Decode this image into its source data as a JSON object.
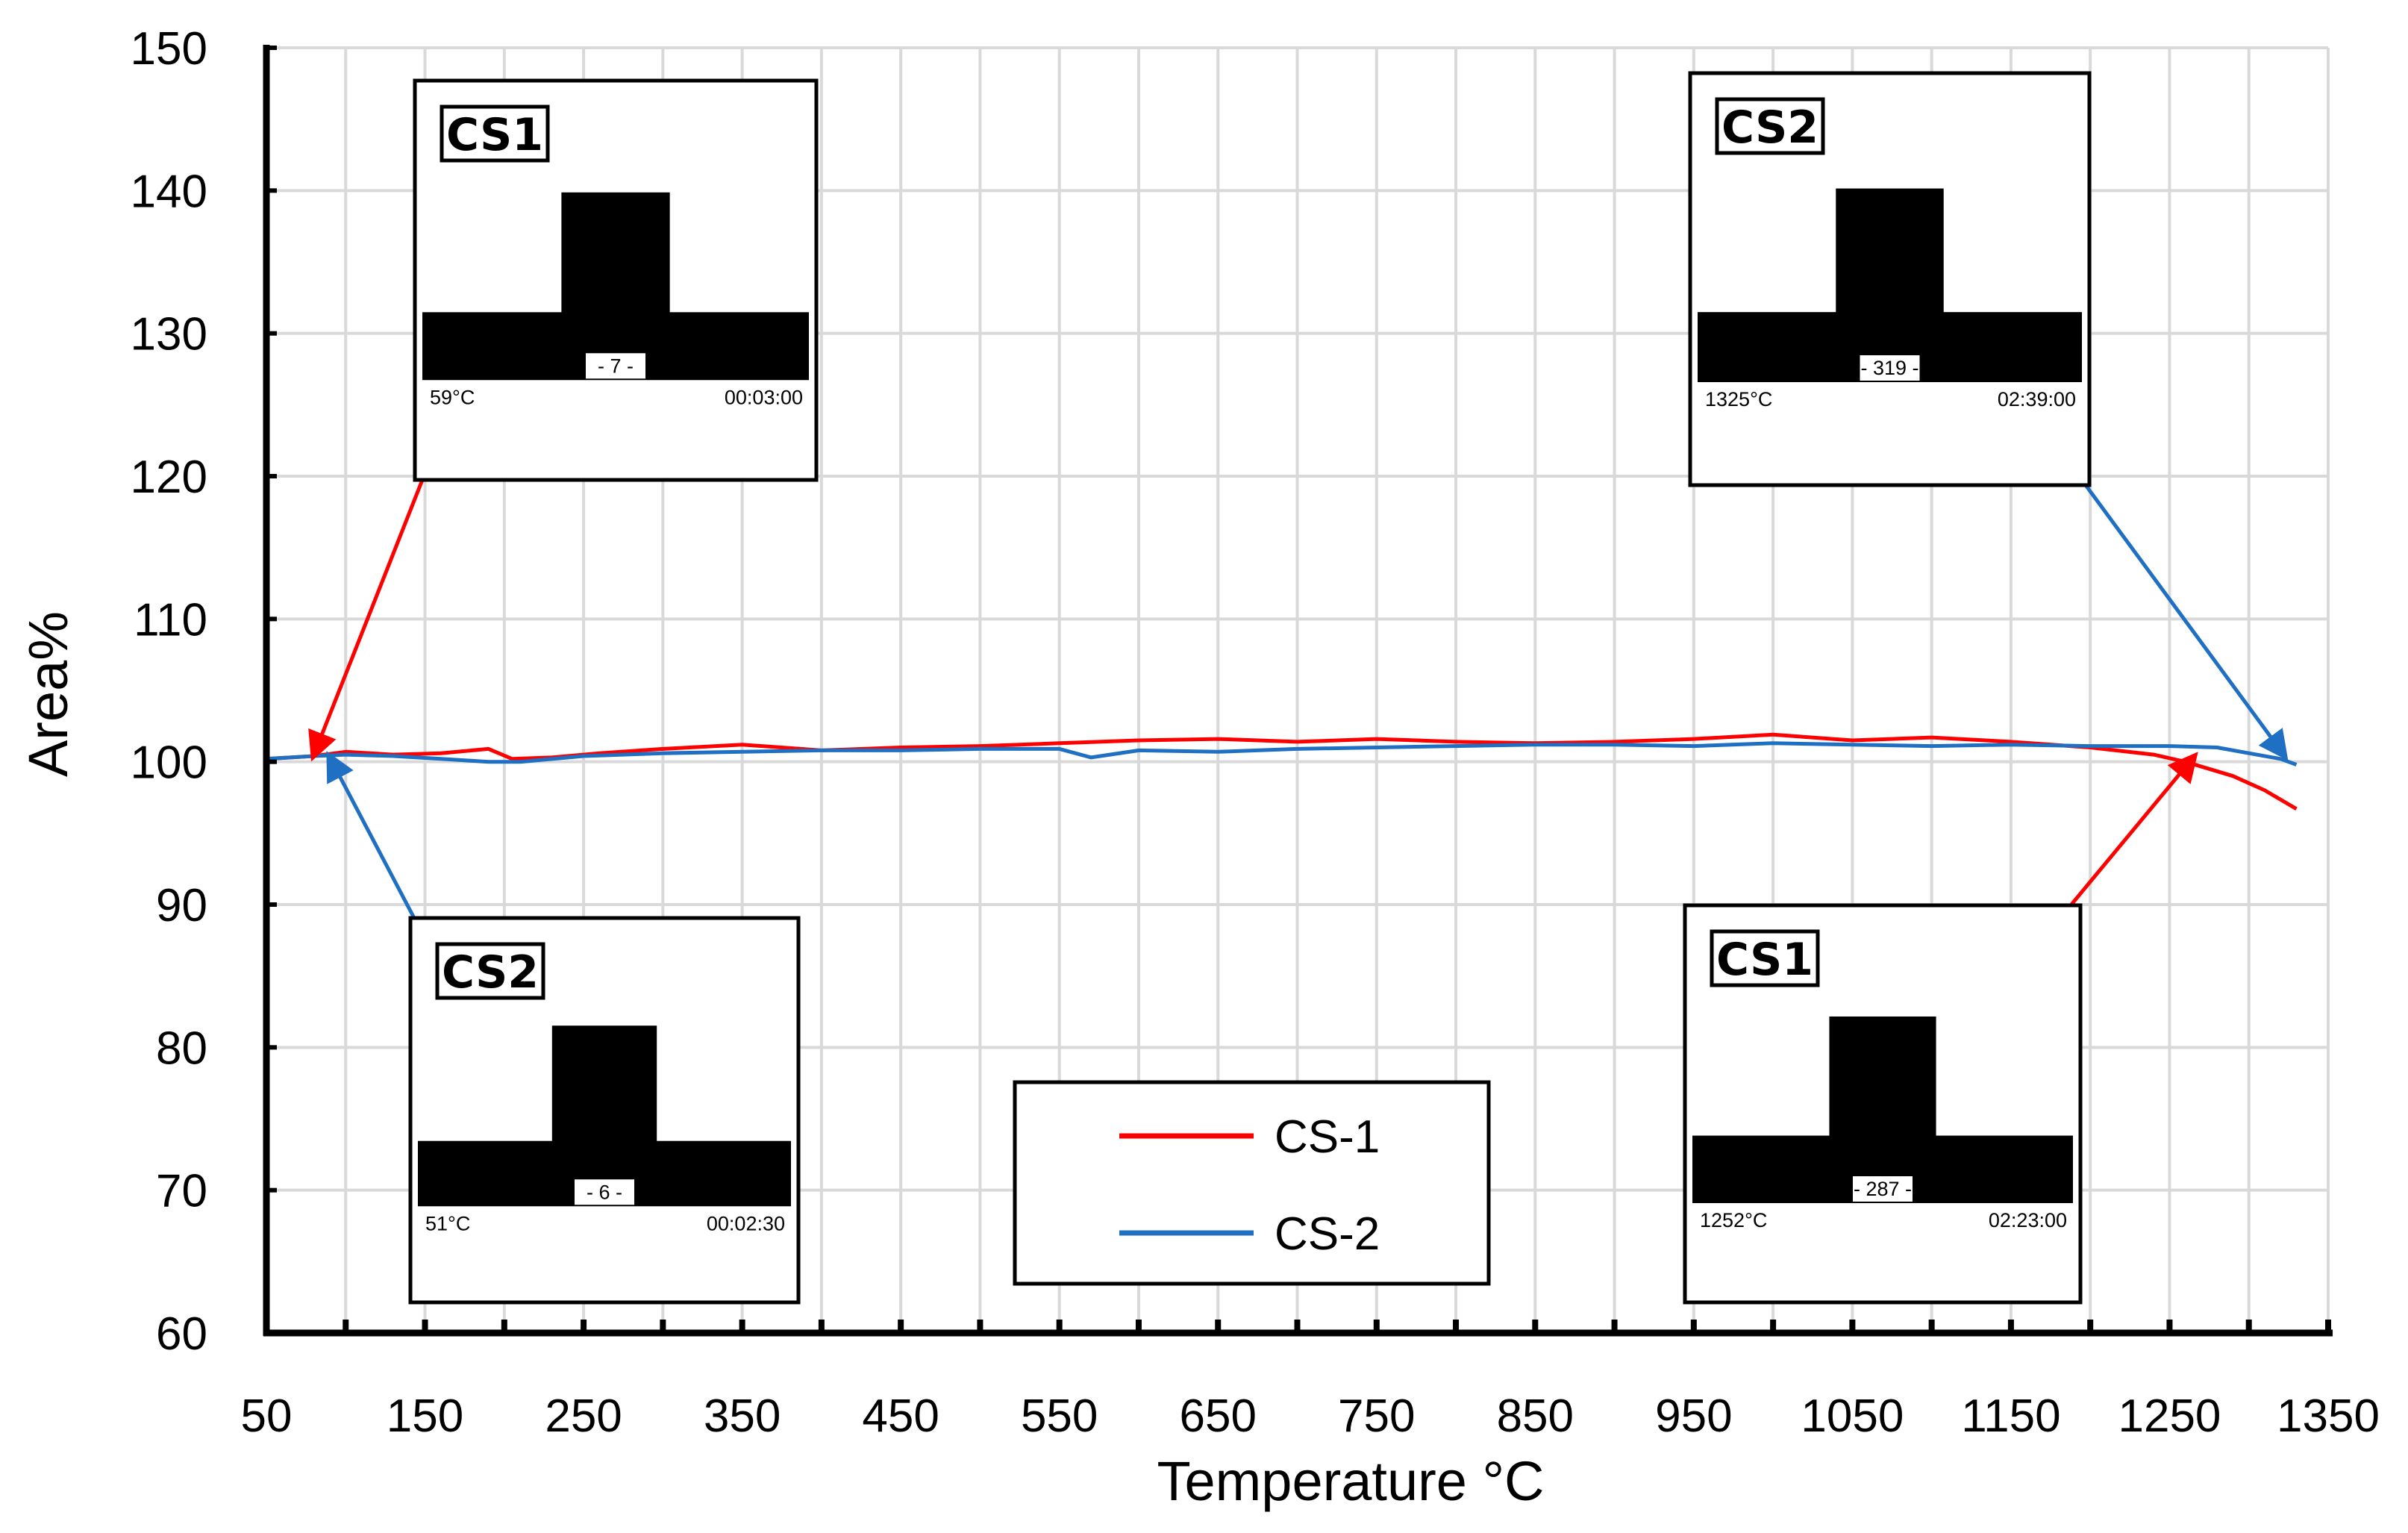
{
  "chart_data": {
    "type": "line",
    "title": "",
    "xlabel": "Temperature °C",
    "ylabel": "Area%",
    "xlim": [
      50,
      1350
    ],
    "ylim": [
      60,
      150
    ],
    "x_ticks": [
      "50",
      "150",
      "250",
      "350",
      "450",
      "550",
      "650",
      "750",
      "850",
      "950",
      "1050",
      "1150",
      "1250",
      "1350"
    ],
    "y_ticks": [
      "60",
      "70",
      "80",
      "90",
      "100",
      "110",
      "120",
      "130",
      "140",
      "150"
    ],
    "grid": true,
    "legend_position": "bottom-center",
    "series": [
      {
        "name": "CS-1",
        "color": "#ff0000",
        "points": [
          [
            50,
            100.2
          ],
          [
            80,
            100.4
          ],
          [
            100,
            100.7
          ],
          [
            130,
            100.5
          ],
          [
            160,
            100.6
          ],
          [
            190,
            100.9
          ],
          [
            205,
            100.2
          ],
          [
            230,
            100.3
          ],
          [
            260,
            100.6
          ],
          [
            300,
            100.9
          ],
          [
            350,
            101.2
          ],
          [
            400,
            100.8
          ],
          [
            450,
            101.0
          ],
          [
            500,
            101.1
          ],
          [
            550,
            101.3
          ],
          [
            600,
            101.5
          ],
          [
            650,
            101.6
          ],
          [
            700,
            101.4
          ],
          [
            750,
            101.6
          ],
          [
            800,
            101.4
          ],
          [
            850,
            101.3
          ],
          [
            900,
            101.4
          ],
          [
            950,
            101.6
          ],
          [
            1000,
            101.9
          ],
          [
            1050,
            101.5
          ],
          [
            1100,
            101.7
          ],
          [
            1150,
            101.4
          ],
          [
            1200,
            101.0
          ],
          [
            1240,
            100.5
          ],
          [
            1260,
            100.0
          ],
          [
            1290,
            99.0
          ],
          [
            1310,
            98.0
          ],
          [
            1330,
            96.7
          ]
        ]
      },
      {
        "name": "CS-2",
        "color": "#1f6fc2",
        "points": [
          [
            50,
            100.2
          ],
          [
            80,
            100.4
          ],
          [
            100,
            100.5
          ],
          [
            130,
            100.4
          ],
          [
            160,
            100.2
          ],
          [
            190,
            100.0
          ],
          [
            210,
            100.0
          ],
          [
            250,
            100.4
          ],
          [
            300,
            100.6
          ],
          [
            350,
            100.7
          ],
          [
            400,
            100.8
          ],
          [
            450,
            100.8
          ],
          [
            500,
            100.9
          ],
          [
            550,
            100.9
          ],
          [
            570,
            100.3
          ],
          [
            600,
            100.8
          ],
          [
            650,
            100.7
          ],
          [
            700,
            100.9
          ],
          [
            750,
            101.0
          ],
          [
            800,
            101.1
          ],
          [
            850,
            101.2
          ],
          [
            900,
            101.2
          ],
          [
            950,
            101.1
          ],
          [
            1000,
            101.3
          ],
          [
            1050,
            101.2
          ],
          [
            1100,
            101.1
          ],
          [
            1150,
            101.2
          ],
          [
            1200,
            101.1
          ],
          [
            1250,
            101.1
          ],
          [
            1280,
            101.0
          ],
          [
            1300,
            100.6
          ],
          [
            1320,
            100.2
          ],
          [
            1330,
            99.8
          ]
        ]
      }
    ],
    "insets": [
      {
        "badge": "CS1",
        "frame": "- 7 -",
        "temperature": "59°C",
        "time": "00:03:00",
        "arrow_color": "#ff0000",
        "target": [
          80,
          100.5
        ]
      },
      {
        "badge": "CS2",
        "frame": "- 319 -",
        "temperature": "1325°C",
        "time": "02:39:00",
        "arrow_color": "#1f6fc2",
        "target": [
          1322,
          100.5
        ]
      },
      {
        "badge": "CS2",
        "frame": "- 6 -",
        "temperature": "51°C",
        "time": "00:02:30",
        "arrow_color": "#1f6fc2",
        "target": [
          90,
          100.3
        ]
      },
      {
        "badge": "CS1",
        "frame": "- 287 -",
        "temperature": "1252°C",
        "time": "02:23:00",
        "arrow_color": "#ff0000",
        "target": [
          1265,
          100.3
        ]
      }
    ]
  }
}
